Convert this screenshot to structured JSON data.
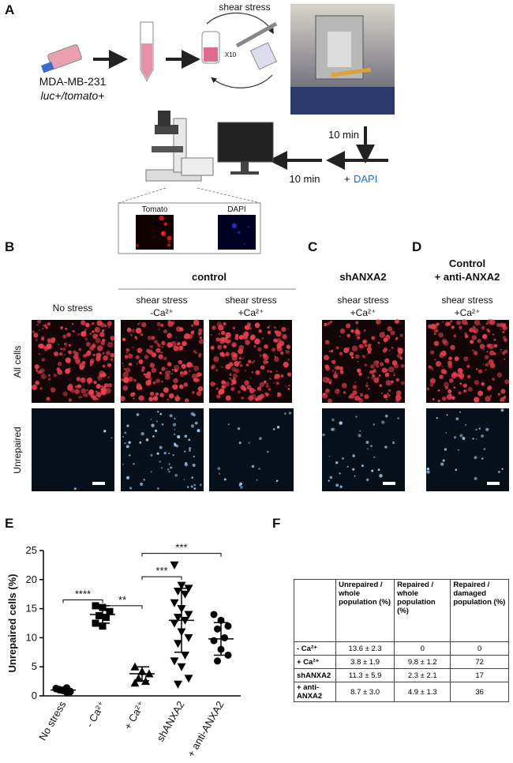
{
  "panels": {
    "A": {
      "label": "A",
      "shear": "shear stress",
      "repeat": "X10",
      "cell_line": "MDA-MB-231",
      "genotype": "luc+/tomato+",
      "wait1": "10 min",
      "wait2": "10 min",
      "plus": "+",
      "dapi": "DAPI",
      "inset_tomato": "Tomato",
      "inset_dapi": "DAPI"
    },
    "B": {
      "label": "B",
      "group": "control",
      "col1": "No stress",
      "col2_l1": "shear stress",
      "col2_l2": "-Ca²⁺",
      "col3_l1": "shear stress",
      "col3_l2": "+Ca²⁺",
      "row1": "All cells",
      "row2": "Unrepaired"
    },
    "C": {
      "label": "C",
      "group": "shANXA2",
      "col_l1": "shear stress",
      "col_l2": "+Ca²⁺"
    },
    "D": {
      "label": "D",
      "group_l1": "Control",
      "group_l2": "+ anti-ANXA2",
      "col_l1": "shear stress",
      "col_l2": "+Ca²⁺"
    },
    "E": {
      "label": "E"
    },
    "F": {
      "label": "F"
    }
  },
  "chart_data": {
    "type": "dotplot",
    "ylabel": "Unrepaired cells (%)",
    "categories": [
      "No stress",
      "- Ca²⁺",
      "+ Ca²⁺",
      "shANXA2",
      "+ anti-ANXA2"
    ],
    "markers": [
      "circle",
      "square",
      "triangle",
      "triangle-down",
      "circle"
    ],
    "color": "#000000",
    "values": [
      [
        1.2,
        1.0,
        0.8,
        1.1,
        0.6,
        1.3,
        0.9,
        0.7,
        1.0,
        1.4
      ],
      [
        15.5,
        15.2,
        14.5,
        13.8,
        13.5,
        12.5,
        12.0
      ],
      [
        5.0,
        4.2,
        3.8,
        3.0,
        2.5,
        2.2
      ],
      [
        22.5,
        19.0,
        18.5,
        18.0,
        17.5,
        16.0,
        15.0,
        14.0,
        13.5,
        13.0,
        12.5,
        11.0,
        10.0,
        9.0,
        7.0,
        6.0,
        5.0,
        3.0,
        2.0
      ],
      [
        14.0,
        13.0,
        12.0,
        11.5,
        10.0,
        9.5,
        8.0,
        7.0,
        6.0
      ]
    ],
    "means": [
      1.0,
      14.0,
      3.8,
      13.0,
      9.8
    ],
    "sd": [
      0.3,
      1.5,
      1.2,
      5.5,
      2.8
    ],
    "comparisons": [
      {
        "label": "****",
        "groups": [
          "No stress",
          "- Ca²⁺"
        ]
      },
      {
        "label": "**",
        "groups": [
          "- Ca²⁺",
          "+ Ca²⁺"
        ]
      },
      {
        "label": "***",
        "groups": [
          "+ Ca²⁺",
          "shANXA2"
        ]
      },
      {
        "label": "***",
        "groups": [
          "+ Ca²⁺",
          "+ anti-ANXA2"
        ]
      }
    ],
    "ylim": [
      0,
      25
    ],
    "yticks": [
      0,
      5,
      10,
      15,
      20,
      25
    ]
  },
  "table": {
    "header": [
      "Unrepaired / whole population (%)",
      "Repaired / whole population (%)",
      "Repaired / damaged population (%)"
    ],
    "rows": [
      [
        "- Ca²⁺",
        "13.6 ± 2.3",
        "0",
        "0"
      ],
      [
        "+ Ca²⁺",
        "3.8 ± 1.9",
        "9.8 ± 1.2",
        "72"
      ],
      [
        "shANXA2",
        "11.3 ± 5.9",
        "2.3 ± 2.1",
        "17"
      ],
      [
        "+ anti-ANXA2",
        "8.7 ± 3.0",
        "4.9 ± 1.3",
        "36"
      ]
    ]
  }
}
